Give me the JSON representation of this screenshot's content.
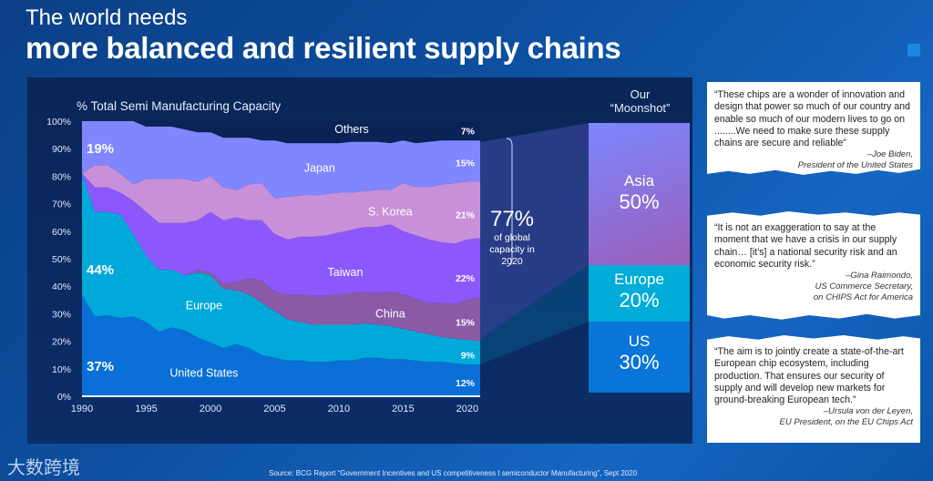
{
  "header": {
    "title_line1": "The world needs",
    "title_line2": "more balanced and resilient supply chains"
  },
  "chart_data": {
    "type": "area",
    "stacked": true,
    "title": "% Total Semi Manufacturing Capacity",
    "xlabel": "",
    "ylabel": "% Total Semi Manufacturing Capacity",
    "xlim": [
      1990,
      2021
    ],
    "ylim": [
      0,
      100
    ],
    "x_ticks": [
      "1990",
      "1995",
      "2000",
      "2005",
      "2010",
      "2015",
      "2020"
    ],
    "y_ticks": [
      "0%",
      "10%",
      "20%",
      "30%",
      "40%",
      "50%",
      "60%",
      "70%",
      "80%",
      "90%",
      "100%"
    ],
    "x": [
      1990,
      1991,
      1992,
      1993,
      1994,
      1995,
      1996,
      1997,
      1998,
      1999,
      2000,
      2001,
      2002,
      2003,
      2004,
      2005,
      2006,
      2007,
      2008,
      2009,
      2010,
      2011,
      2012,
      2013,
      2014,
      2015,
      2016,
      2017,
      2018,
      2019,
      2020,
      2021
    ],
    "value_mode": "cumulative_top_percent",
    "series": [
      {
        "name": "United States",
        "color": "#0a6fd6",
        "cumulative": [
          37,
          29,
          29.5,
          28.5,
          29,
          27,
          23.5,
          25,
          24,
          21.5,
          19.5,
          17.5,
          19,
          17.5,
          15,
          14,
          13,
          13,
          12.5,
          12.5,
          13,
          13,
          14,
          14,
          13.5,
          13.5,
          13,
          12.5,
          12.5,
          12,
          11.5,
          11.5
        ]
      },
      {
        "name": "Europe",
        "color": "#00a9d9",
        "cumulative": [
          81,
          67,
          67,
          66,
          59,
          51,
          46,
          46,
          44,
          45,
          44,
          39,
          38.5,
          37,
          34,
          31,
          28,
          27,
          26,
          26,
          26,
          26,
          26.5,
          26,
          25.5,
          24.5,
          23.5,
          22.5,
          21.5,
          21,
          20.5,
          20
        ]
      },
      {
        "name": "China",
        "color": "#8a5aa6",
        "cumulative": [
          81,
          67,
          67,
          66,
          59,
          51,
          46,
          46,
          44,
          46,
          45,
          41,
          41.5,
          43,
          42,
          38,
          37,
          37,
          36.5,
          36.5,
          37,
          37.5,
          38,
          37.5,
          38,
          37,
          35.5,
          34,
          34,
          33.5,
          35,
          36
        ]
      },
      {
        "name": "Taiwan",
        "color": "#8d58fb",
        "cumulative": [
          81,
          76,
          76,
          74,
          71,
          67,
          63,
          63,
          63,
          64,
          67,
          64,
          65,
          64,
          64,
          59,
          57,
          58,
          58,
          58.5,
          59.5,
          60.5,
          61.5,
          61.5,
          62.5,
          60,
          58.5,
          57,
          56,
          55.5,
          57,
          57.5
        ]
      },
      {
        "name": "S. Korea",
        "color": "#c890d8",
        "cumulative": [
          81,
          84,
          84,
          81,
          77,
          79,
          79,
          79,
          79,
          78,
          80,
          76,
          75,
          77,
          77.5,
          72,
          72.5,
          73,
          73,
          73.5,
          74,
          74,
          74.5,
          75,
          75,
          77.5,
          76,
          76,
          77,
          77.5,
          78,
          78
        ]
      },
      {
        "name": "Japan",
        "color": "#7f86fe",
        "cumulative": [
          100,
          100,
          100,
          100,
          100,
          98,
          98,
          98,
          97,
          96,
          96,
          94,
          94,
          94,
          93,
          93,
          92,
          92,
          92,
          92,
          92,
          92.5,
          92.5,
          92.5,
          92,
          93,
          92,
          92.5,
          93,
          93,
          93,
          93
        ]
      },
      {
        "name": "Others",
        "color": "#0b2256",
        "cumulative": [
          100,
          100,
          100,
          100,
          100,
          100,
          100,
          100,
          100,
          100,
          100,
          100,
          100,
          100,
          100,
          100,
          100,
          100,
          100,
          100,
          100,
          100,
          100,
          100,
          100,
          100,
          100,
          100,
          100,
          100,
          100,
          100
        ]
      }
    ],
    "annotations": {
      "start_1990": {
        "us": "37%",
        "europe": "44%",
        "japan": "19%"
      },
      "end_2020": {
        "others": "7%",
        "japan": "15%",
        "korea": "21%",
        "taiwan": "22%",
        "china": "15%",
        "europe": "9%",
        "us": "12%"
      }
    }
  },
  "moonshot": {
    "title_line1": "Our",
    "title_line2": "“Moonshot”",
    "asia": {
      "label": "Asia",
      "value": "50%"
    },
    "europe": {
      "label": "Europe",
      "value": "20%"
    },
    "us": {
      "label": "US",
      "value": "30%"
    },
    "share": {
      "value": "77%",
      "caption_line1": "of global",
      "caption_line2": "capacity in",
      "caption_line3": "2020"
    }
  },
  "quotes": [
    {
      "text": "“These chips are a wonder of innovation and design that power so much of our country and enable so much of our modern lives to go on ........We need to make sure these supply chains are secure and reliable”",
      "author": "–Joe Biden,",
      "role": "President of the United States",
      "role2": ""
    },
    {
      "text": "“It is not an exaggeration to say at the moment that we have a crisis in our supply chain… [it’s] a national security risk and an economic security risk.”",
      "author": "–Gina Raimondo,",
      "role": "US Commerce Secretary,",
      "role2": "on CHIPS Act for America"
    },
    {
      "text": "“The aim is to jointly create a state-of-the-art European chip ecosystem, including production. That ensures our security of supply and will develop new markets for ground-breaking European tech.”",
      "author": "–Ursula von der Leyen,",
      "role": "EU President, on the EU Chips Act",
      "role2": ""
    }
  ],
  "footer": {
    "logo": "大数跨境",
    "source": "Source:  BCG Report “Government Incentives and US competitiveness I semiconductor Manufacturing”, Sept 2020"
  }
}
